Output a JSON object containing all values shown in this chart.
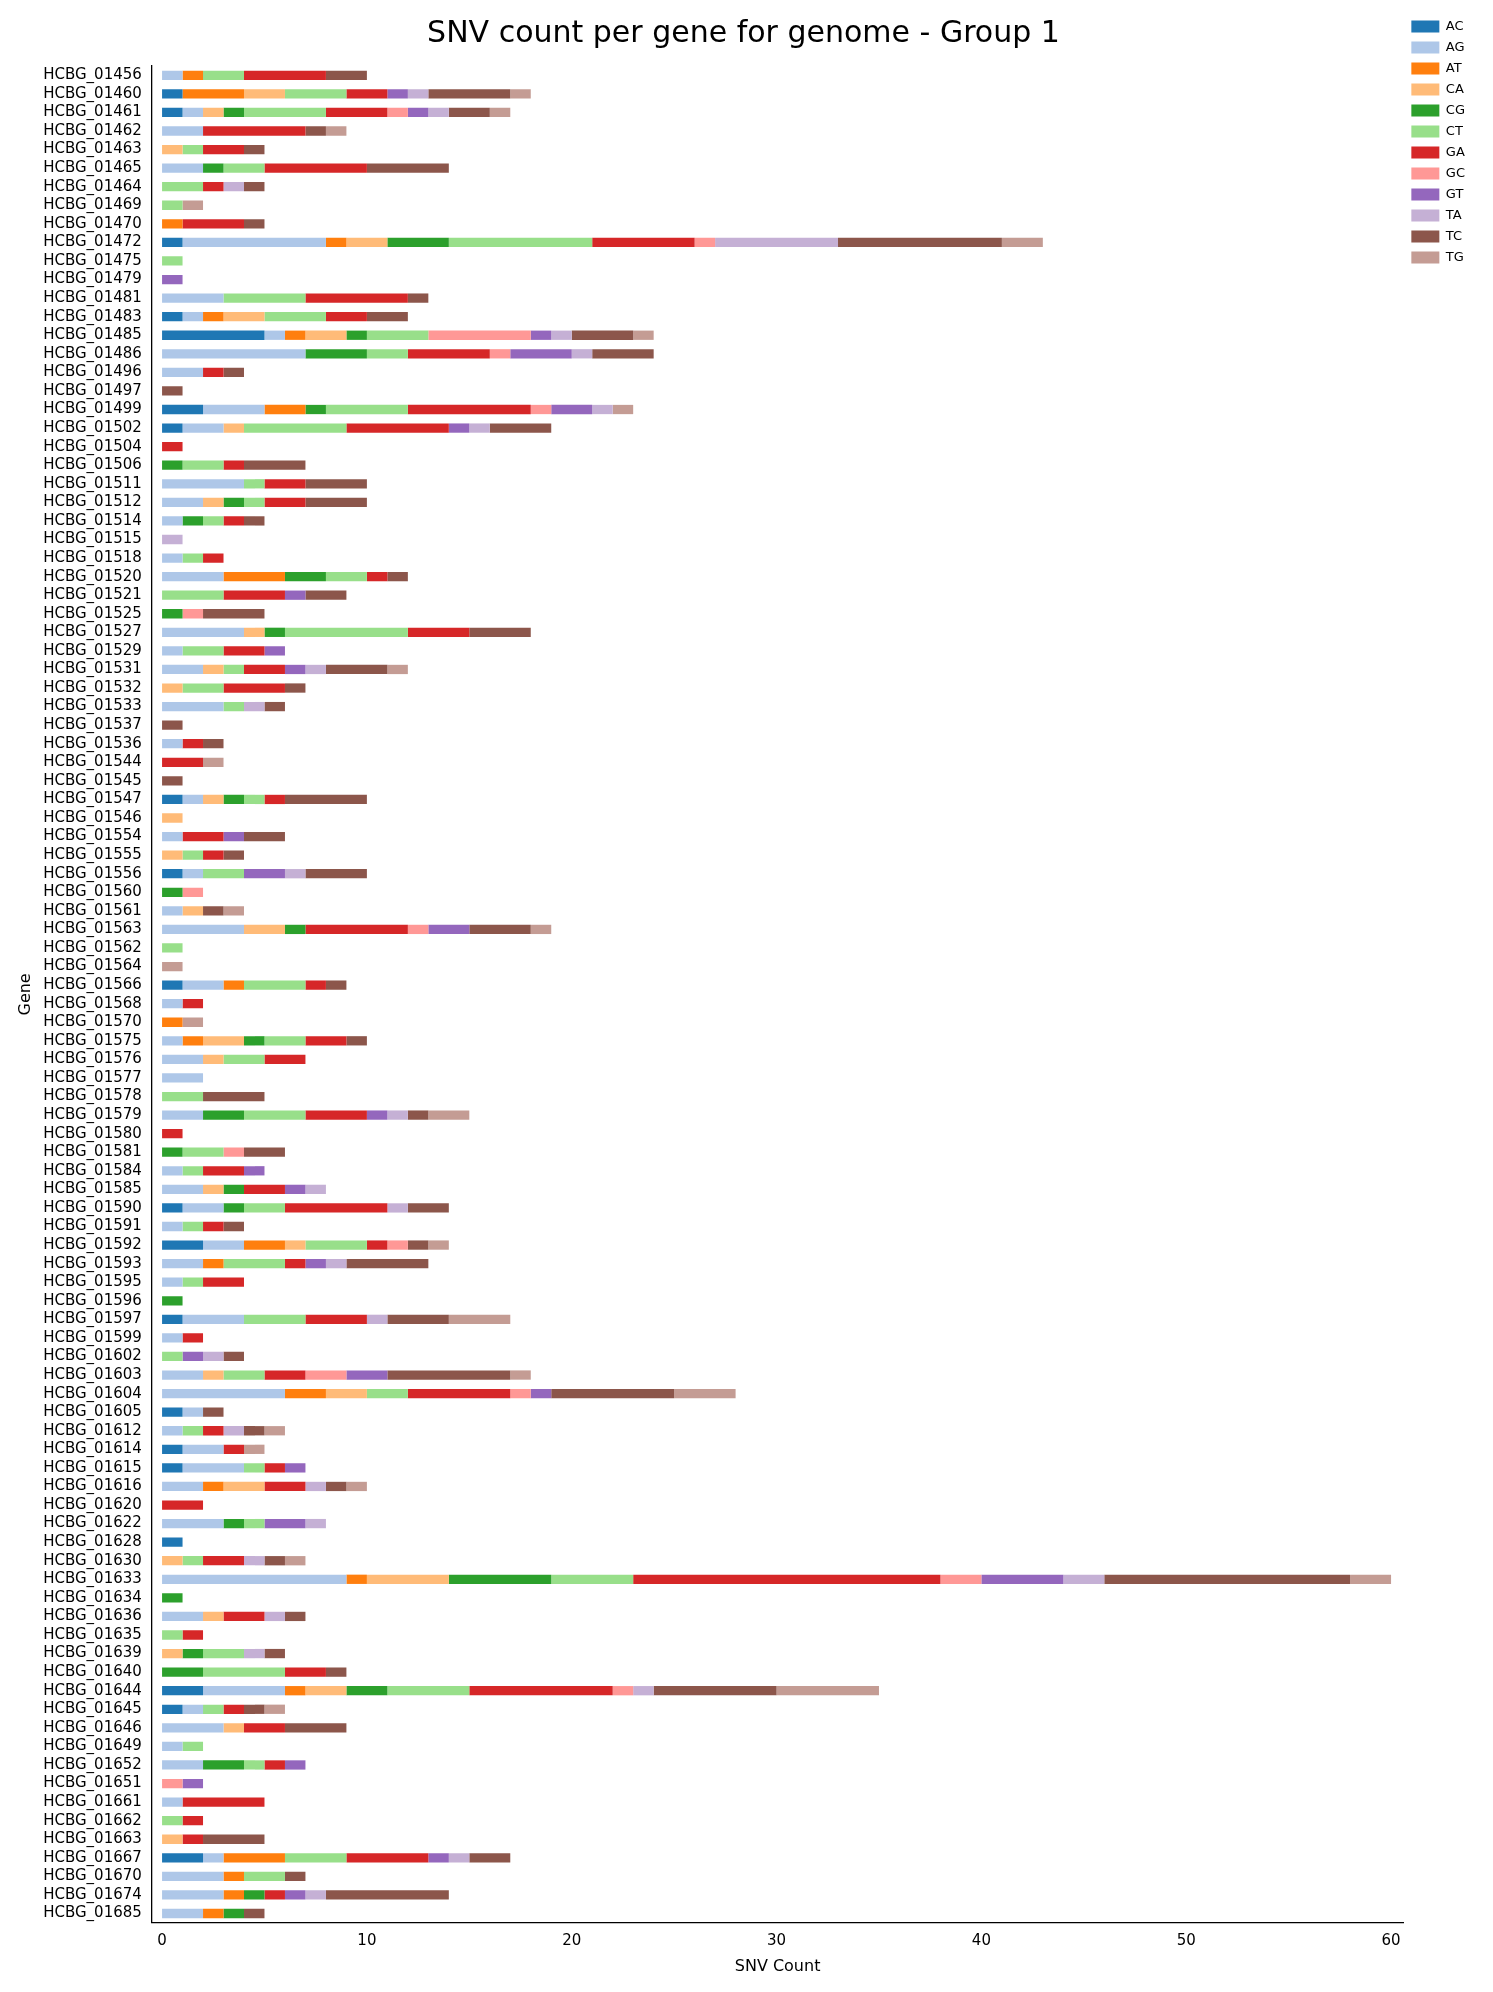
{
  "chart_data": {
    "type": "bar",
    "title": "SNV count per gene for genome - Group 1",
    "xlabel": "SNV Count",
    "ylabel": "Gene",
    "orientation": "horizontal",
    "stacked": true,
    "legend": "top right",
    "xlim": [
      -0.5,
      60.6
    ],
    "xticks": [
      0,
      10,
      20,
      30,
      40,
      50,
      60
    ],
    "categories": [
      "HCBG_01456",
      "HCBG_01460",
      "HCBG_01461",
      "HCBG_01462",
      "HCBG_01463",
      "HCBG_01465",
      "HCBG_01464",
      "HCBG_01469",
      "HCBG_01470",
      "HCBG_01472",
      "HCBG_01475",
      "HCBG_01479",
      "HCBG_01481",
      "HCBG_01483",
      "HCBG_01485",
      "HCBG_01486",
      "HCBG_01496",
      "HCBG_01497",
      "HCBG_01499",
      "HCBG_01502",
      "HCBG_01504",
      "HCBG_01506",
      "HCBG_01511",
      "HCBG_01512",
      "HCBG_01514",
      "HCBG_01515",
      "HCBG_01518",
      "HCBG_01520",
      "HCBG_01521",
      "HCBG_01525",
      "HCBG_01527",
      "HCBG_01529",
      "HCBG_01531",
      "HCBG_01532",
      "HCBG_01533",
      "HCBG_01537",
      "HCBG_01536",
      "HCBG_01544",
      "HCBG_01545",
      "HCBG_01547",
      "HCBG_01546",
      "HCBG_01554",
      "HCBG_01555",
      "HCBG_01556",
      "HCBG_01560",
      "HCBG_01561",
      "HCBG_01563",
      "HCBG_01562",
      "HCBG_01564",
      "HCBG_01566",
      "HCBG_01568",
      "HCBG_01570",
      "HCBG_01575",
      "HCBG_01576",
      "HCBG_01577",
      "HCBG_01578",
      "HCBG_01579",
      "HCBG_01580",
      "HCBG_01581",
      "HCBG_01584",
      "HCBG_01585",
      "HCBG_01590",
      "HCBG_01591",
      "HCBG_01592",
      "HCBG_01593",
      "HCBG_01595",
      "HCBG_01596",
      "HCBG_01597",
      "HCBG_01599",
      "HCBG_01602",
      "HCBG_01603",
      "HCBG_01604",
      "HCBG_01605",
      "HCBG_01612",
      "HCBG_01614",
      "HCBG_01615",
      "HCBG_01616",
      "HCBG_01620",
      "HCBG_01622",
      "HCBG_01628",
      "HCBG_01630",
      "HCBG_01633",
      "HCBG_01634",
      "HCBG_01636",
      "HCBG_01635",
      "HCBG_01639",
      "HCBG_01640",
      "HCBG_01644",
      "HCBG_01645",
      "HCBG_01646",
      "HCBG_01649",
      "HCBG_01652",
      "HCBG_01651",
      "HCBG_01661",
      "HCBG_01662",
      "HCBG_01663",
      "HCBG_01667",
      "HCBG_01670",
      "HCBG_01674",
      "HCBG_01685"
    ],
    "series": [
      {
        "name": "AC",
        "color": "#1f77b4",
        "values": [
          0,
          1,
          1,
          0,
          0,
          0,
          0,
          0,
          0,
          1,
          0,
          0,
          0,
          1,
          5,
          0,
          0,
          0,
          2,
          1,
          0,
          0,
          0,
          0,
          0,
          0,
          0,
          0,
          0,
          0,
          0,
          0,
          0,
          0,
          0,
          0,
          0,
          0,
          0,
          1,
          0,
          0,
          0,
          1,
          0,
          0,
          0,
          0,
          0,
          1,
          0,
          0,
          0,
          0,
          0,
          0,
          0,
          0,
          0,
          0,
          0,
          1,
          0,
          2,
          0,
          0,
          0,
          1,
          0,
          0,
          0,
          0,
          1,
          0,
          1,
          1,
          0,
          0,
          0,
          1,
          0,
          0,
          0,
          0,
          0,
          0,
          0,
          2,
          1,
          0,
          0,
          0,
          0,
          0,
          0,
          0,
          2,
          0,
          0,
          0
        ]
      },
      {
        "name": "AG",
        "color": "#aec7e8",
        "values": [
          1,
          0,
          1,
          2,
          0,
          2,
          0,
          0,
          0,
          7,
          0,
          0,
          3,
          1,
          1,
          7,
          2,
          0,
          3,
          2,
          0,
          0,
          4,
          2,
          1,
          0,
          1,
          3,
          0,
          0,
          4,
          1,
          2,
          0,
          3,
          0,
          1,
          0,
          0,
          1,
          0,
          1,
          0,
          1,
          0,
          1,
          4,
          0,
          0,
          2,
          1,
          0,
          1,
          2,
          2,
          0,
          2,
          0,
          0,
          1,
          2,
          2,
          1,
          2,
          2,
          1,
          0,
          3,
          1,
          0,
          2,
          6,
          1,
          1,
          2,
          3,
          2,
          0,
          3,
          0,
          0,
          9,
          0,
          2,
          0,
          0,
          0,
          4,
          1,
          3,
          1,
          2,
          0,
          1,
          0,
          0,
          1,
          3,
          3,
          2
        ]
      },
      {
        "name": "AT",
        "color": "#ff7f0e",
        "values": [
          1,
          3,
          0,
          0,
          0,
          0,
          0,
          0,
          1,
          1,
          0,
          0,
          0,
          1,
          1,
          0,
          0,
          0,
          2,
          0,
          0,
          0,
          0,
          0,
          0,
          0,
          0,
          3,
          0,
          0,
          0,
          0,
          0,
          0,
          0,
          0,
          0,
          0,
          0,
          0,
          0,
          0,
          0,
          0,
          0,
          0,
          0,
          0,
          0,
          1,
          0,
          1,
          1,
          0,
          0,
          0,
          0,
          0,
          0,
          0,
          0,
          0,
          0,
          2,
          1,
          0,
          0,
          0,
          0,
          0,
          0,
          2,
          0,
          0,
          0,
          0,
          1,
          0,
          0,
          0,
          0,
          1,
          0,
          0,
          0,
          0,
          0,
          1,
          0,
          0,
          0,
          0,
          0,
          0,
          0,
          0,
          3,
          1,
          1,
          1
        ]
      },
      {
        "name": "CA",
        "color": "#ffbb78",
        "values": [
          0,
          2,
          1,
          0,
          1,
          0,
          0,
          0,
          0,
          2,
          0,
          0,
          0,
          2,
          2,
          0,
          0,
          0,
          0,
          1,
          0,
          0,
          0,
          1,
          0,
          0,
          0,
          0,
          0,
          0,
          1,
          0,
          1,
          1,
          0,
          0,
          0,
          0,
          0,
          1,
          1,
          0,
          1,
          0,
          0,
          1,
          2,
          0,
          0,
          0,
          0,
          0,
          2,
          1,
          0,
          0,
          0,
          0,
          0,
          0,
          1,
          0,
          0,
          1,
          0,
          0,
          0,
          0,
          0,
          0,
          1,
          2,
          0,
          0,
          0,
          0,
          2,
          0,
          0,
          0,
          1,
          4,
          0,
          1,
          0,
          1,
          0,
          2,
          0,
          1,
          0,
          0,
          0,
          0,
          0,
          1,
          0,
          0,
          0,
          0
        ]
      },
      {
        "name": "CG",
        "color": "#2ca02c",
        "values": [
          0,
          0,
          1,
          0,
          0,
          1,
          0,
          0,
          0,
          3,
          0,
          0,
          0,
          0,
          1,
          3,
          0,
          0,
          1,
          0,
          0,
          1,
          0,
          1,
          1,
          0,
          0,
          2,
          0,
          1,
          1,
          0,
          0,
          0,
          0,
          0,
          0,
          0,
          0,
          1,
          0,
          0,
          0,
          0,
          1,
          0,
          1,
          0,
          0,
          0,
          0,
          0,
          1,
          0,
          0,
          0,
          2,
          0,
          1,
          0,
          1,
          1,
          0,
          0,
          0,
          0,
          1,
          0,
          0,
          0,
          0,
          0,
          0,
          0,
          0,
          0,
          0,
          0,
          1,
          0,
          0,
          5,
          1,
          0,
          0,
          1,
          2,
          2,
          0,
          0,
          0,
          2,
          0,
          0,
          0,
          0,
          0,
          0,
          1,
          1
        ]
      },
      {
        "name": "CT",
        "color": "#98df8a",
        "values": [
          2,
          3,
          4,
          0,
          1,
          2,
          2,
          1,
          0,
          7,
          1,
          0,
          4,
          3,
          3,
          2,
          0,
          0,
          4,
          5,
          0,
          2,
          1,
          1,
          1,
          0,
          1,
          2,
          3,
          0,
          6,
          2,
          1,
          2,
          1,
          0,
          0,
          0,
          0,
          1,
          0,
          0,
          1,
          2,
          0,
          0,
          0,
          1,
          0,
          3,
          0,
          0,
          2,
          2,
          0,
          2,
          3,
          0,
          2,
          1,
          0,
          2,
          1,
          3,
          3,
          1,
          0,
          3,
          0,
          1,
          2,
          2,
          0,
          1,
          0,
          1,
          0,
          0,
          1,
          0,
          1,
          4,
          0,
          0,
          1,
          2,
          4,
          4,
          1,
          0,
          1,
          1,
          0,
          0,
          1,
          0,
          3,
          2,
          0,
          0
        ]
      },
      {
        "name": "GA",
        "color": "#d62728",
        "values": [
          4,
          2,
          3,
          5,
          2,
          5,
          1,
          0,
          3,
          5,
          0,
          0,
          5,
          2,
          0,
          4,
          1,
          0,
          6,
          5,
          1,
          1,
          2,
          2,
          1,
          0,
          1,
          1,
          3,
          0,
          3,
          2,
          2,
          3,
          0,
          0,
          1,
          2,
          0,
          1,
          0,
          2,
          1,
          0,
          0,
          0,
          5,
          0,
          0,
          1,
          1,
          0,
          2,
          2,
          0,
          0,
          3,
          1,
          0,
          2,
          2,
          5,
          1,
          1,
          1,
          2,
          0,
          3,
          1,
          0,
          2,
          5,
          0,
          1,
          1,
          1,
          2,
          2,
          0,
          0,
          2,
          15,
          0,
          2,
          1,
          0,
          2,
          7,
          1,
          2,
          0,
          1,
          0,
          4,
          1,
          1,
          4,
          0,
          1,
          0
        ]
      },
      {
        "name": "GC",
        "color": "#ff9896",
        "values": [
          0,
          0,
          1,
          0,
          0,
          0,
          0,
          0,
          0,
          1,
          0,
          0,
          0,
          0,
          5,
          1,
          0,
          0,
          1,
          0,
          0,
          0,
          0,
          0,
          0,
          0,
          0,
          0,
          0,
          1,
          0,
          0,
          0,
          0,
          0,
          0,
          0,
          0,
          0,
          0,
          0,
          0,
          0,
          0,
          1,
          0,
          1,
          0,
          0,
          0,
          0,
          0,
          0,
          0,
          0,
          0,
          0,
          0,
          1,
          0,
          0,
          0,
          0,
          1,
          0,
          0,
          0,
          0,
          0,
          0,
          2,
          1,
          0,
          0,
          0,
          0,
          0,
          0,
          0,
          0,
          0,
          2,
          0,
          0,
          0,
          0,
          0,
          1,
          0,
          0,
          0,
          0,
          1,
          0,
          0,
          0,
          0,
          0,
          0,
          0
        ]
      },
      {
        "name": "GT",
        "color": "#9467bd",
        "values": [
          0,
          1,
          1,
          0,
          0,
          0,
          0,
          0,
          0,
          0,
          0,
          1,
          0,
          0,
          1,
          3,
          0,
          0,
          2,
          1,
          0,
          0,
          0,
          0,
          0,
          0,
          0,
          0,
          1,
          0,
          0,
          1,
          1,
          0,
          0,
          0,
          0,
          0,
          0,
          0,
          0,
          1,
          0,
          2,
          0,
          0,
          2,
          0,
          0,
          0,
          0,
          0,
          0,
          0,
          0,
          0,
          1,
          0,
          0,
          1,
          1,
          0,
          0,
          0,
          1,
          0,
          0,
          0,
          0,
          1,
          2,
          1,
          0,
          0,
          0,
          1,
          0,
          0,
          2,
          0,
          0,
          4,
          0,
          0,
          0,
          0,
          0,
          0,
          0,
          0,
          0,
          1,
          1,
          0,
          0,
          0,
          1,
          0,
          1,
          0
        ]
      },
      {
        "name": "TA",
        "color": "#c5b0d5",
        "values": [
          0,
          1,
          1,
          0,
          0,
          0,
          1,
          0,
          0,
          6,
          0,
          0,
          0,
          0,
          1,
          1,
          0,
          0,
          1,
          1,
          0,
          0,
          0,
          0,
          0,
          1,
          0,
          0,
          0,
          0,
          0,
          0,
          1,
          0,
          1,
          0,
          0,
          0,
          0,
          0,
          0,
          0,
          0,
          1,
          0,
          0,
          0,
          0,
          0,
          0,
          0,
          0,
          0,
          0,
          0,
          0,
          1,
          0,
          0,
          0,
          1,
          1,
          0,
          0,
          1,
          0,
          0,
          1,
          0,
          1,
          0,
          0,
          0,
          1,
          0,
          0,
          1,
          0,
          1,
          0,
          1,
          2,
          0,
          1,
          0,
          1,
          0,
          1,
          0,
          0,
          0,
          0,
          0,
          0,
          0,
          0,
          1,
          0,
          1,
          0
        ]
      },
      {
        "name": "TC",
        "color": "#8c564b",
        "values": [
          2,
          4,
          2,
          1,
          1,
          4,
          1,
          0,
          1,
          8,
          0,
          0,
          1,
          2,
          3,
          3,
          1,
          1,
          0,
          3,
          0,
          3,
          3,
          3,
          1,
          0,
          0,
          1,
          2,
          3,
          3,
          0,
          3,
          1,
          1,
          1,
          1,
          0,
          1,
          4,
          0,
          2,
          1,
          3,
          0,
          1,
          3,
          0,
          0,
          1,
          0,
          0,
          1,
          0,
          0,
          3,
          1,
          0,
          2,
          0,
          0,
          2,
          1,
          1,
          4,
          0,
          0,
          3,
          0,
          1,
          6,
          6,
          1,
          1,
          0,
          0,
          1,
          0,
          0,
          0,
          1,
          12,
          0,
          1,
          0,
          1,
          1,
          6,
          1,
          3,
          0,
          0,
          0,
          0,
          0,
          3,
          2,
          1,
          6,
          1
        ]
      },
      {
        "name": "TG",
        "color": "#c49c94",
        "values": [
          0,
          1,
          1,
          1,
          0,
          0,
          0,
          1,
          0,
          2,
          0,
          0,
          0,
          0,
          1,
          0,
          0,
          0,
          1,
          0,
          0,
          0,
          0,
          0,
          0,
          0,
          0,
          0,
          0,
          0,
          0,
          0,
          1,
          0,
          0,
          0,
          0,
          1,
          0,
          0,
          0,
          0,
          0,
          0,
          0,
          1,
          1,
          0,
          1,
          0,
          0,
          1,
          0,
          0,
          0,
          0,
          2,
          0,
          0,
          0,
          0,
          0,
          0,
          1,
          0,
          0,
          0,
          3,
          0,
          0,
          1,
          3,
          0,
          1,
          1,
          0,
          1,
          0,
          0,
          0,
          1,
          2,
          0,
          0,
          0,
          0,
          0,
          5,
          1,
          0,
          0,
          0,
          0,
          0,
          0,
          0,
          0,
          0,
          0,
          0
        ]
      }
    ]
  }
}
